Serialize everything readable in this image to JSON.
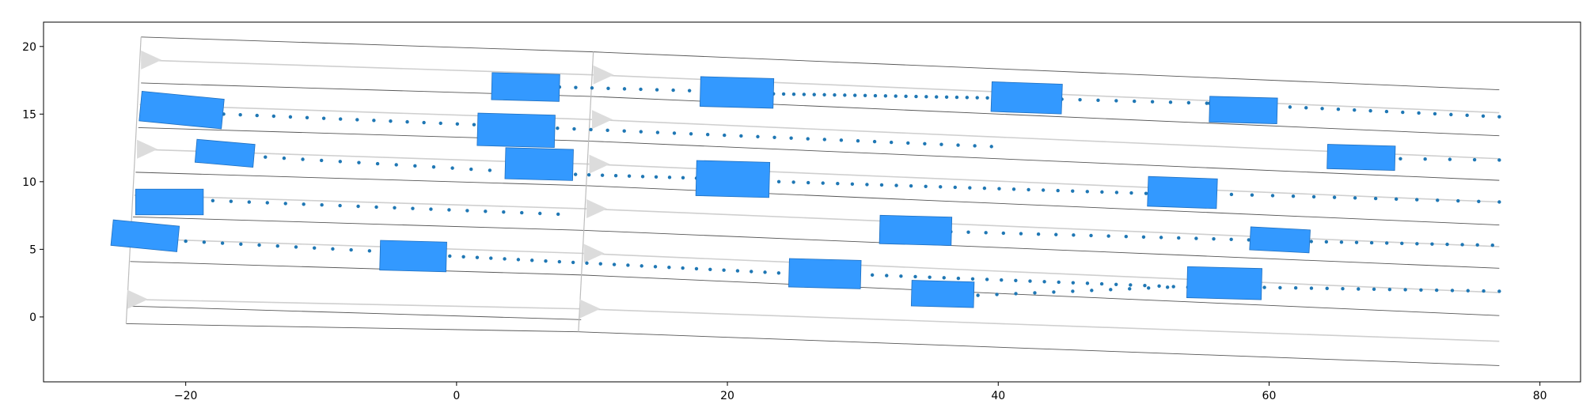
{
  "chart_data": {
    "type": "scatter",
    "title": "",
    "xlabel": "",
    "ylabel": "",
    "xlim": [
      -30.5,
      83
    ],
    "ylim": [
      -4.8,
      21.8
    ],
    "xticks": [
      -20,
      0,
      20,
      40,
      60,
      80
    ],
    "yticks": [
      0,
      5,
      10,
      15,
      20
    ],
    "xtick_labels": [
      "−20",
      "0",
      "20",
      "40",
      "60",
      "80"
    ],
    "ytick_labels": [
      "0",
      "5",
      "10",
      "15",
      "20"
    ],
    "grid": false,
    "legend": "none",
    "colors": {
      "vehicle": "#3399ff",
      "vehicle_edge": "#1f6fbf",
      "trajectory": "#1f77b4",
      "road_edge": "#555555",
      "lane_center": "#cfcfcf",
      "lane_arrow": "#dcdcdc"
    },
    "road": {
      "segments": [
        {
          "boundaries": [
            [
              [
                -23.3,
                20.7
              ],
              [
                10.1,
                19.6
              ]
            ],
            [
              [
                -23.3,
                17.3
              ],
              [
                10.1,
                16.3
              ]
            ],
            [
              [
                -23.5,
                14.0
              ],
              [
                9.9,
                13.0
              ]
            ],
            [
              [
                -23.7,
                10.7
              ],
              [
                9.7,
                9.7
              ]
            ],
            [
              [
                -23.9,
                7.4
              ],
              [
                9.5,
                6.4
              ]
            ],
            [
              [
                -24.1,
                4.1
              ],
              [
                9.3,
                3.1
              ]
            ],
            [
              [
                -24.2,
                0.8
              ],
              [
                9.2,
                -0.2
              ]
            ],
            [
              [
                -24.4,
                -0.5
              ],
              [
                9.0,
                -1.1
              ]
            ]
          ],
          "lane_centers": [
            [
              [
                -23.3,
                19.0
              ],
              [
                10.1,
                17.9
              ]
            ],
            [
              [
                -23.4,
                15.7
              ],
              [
                10.0,
                14.6
              ]
            ],
            [
              [
                -23.6,
                12.4
              ],
              [
                9.8,
                11.3
              ]
            ],
            [
              [
                -23.8,
                9.0
              ],
              [
                9.6,
                8.0
              ]
            ],
            [
              [
                -24.0,
                5.8
              ],
              [
                9.4,
                4.7
              ]
            ],
            [
              [
                -24.3,
                1.3
              ],
              [
                9.1,
                0.6
              ]
            ]
          ],
          "start_line": [
            [
              -23.3,
              20.7
            ],
            [
              -24.4,
              -0.5
            ]
          ],
          "arrows": [
            [
              -23.3,
              19.0
            ],
            [
              -23.6,
              12.4
            ],
            [
              -24.0,
              5.8
            ],
            [
              -24.3,
              1.3
            ]
          ]
        },
        {
          "boundaries": [
            [
              [
                10.1,
                19.6
              ],
              [
                77.0,
                16.8
              ]
            ],
            [
              [
                10.1,
                16.3
              ],
              [
                77.0,
                13.4
              ]
            ],
            [
              [
                9.9,
                13.0
              ],
              [
                77.0,
                10.1
              ]
            ],
            [
              [
                9.7,
                9.7
              ],
              [
                77.0,
                6.8
              ]
            ],
            [
              [
                9.5,
                6.4
              ],
              [
                77.0,
                3.6
              ]
            ],
            [
              [
                9.3,
                3.1
              ],
              [
                77.0,
                0.1
              ]
            ],
            [
              [
                9.0,
                -1.1
              ],
              [
                77.0,
                -3.6
              ]
            ]
          ],
          "lane_centers": [
            [
              [
                10.1,
                17.9
              ],
              [
                77.0,
                15.1
              ]
            ],
            [
              [
                10.0,
                14.6
              ],
              [
                77.0,
                11.7
              ]
            ],
            [
              [
                9.8,
                11.3
              ],
              [
                77.0,
                8.5
              ]
            ],
            [
              [
                9.6,
                8.0
              ],
              [
                77.0,
                5.2
              ]
            ],
            [
              [
                9.4,
                4.7
              ],
              [
                77.0,
                1.8
              ]
            ],
            [
              [
                9.1,
                0.6
              ],
              [
                77.0,
                -1.8
              ]
            ]
          ],
          "start_line": [
            [
              10.1,
              19.6
            ],
            [
              9.0,
              -1.1
            ]
          ],
          "arrows": [
            [
              10.1,
              17.9
            ],
            [
              10.0,
              14.6
            ],
            [
              9.8,
              11.3
            ],
            [
              9.6,
              8.0
            ],
            [
              9.4,
              4.7
            ],
            [
              9.1,
              0.6
            ]
          ]
        }
      ]
    },
    "vehicles": [
      {
        "x": 5.1,
        "y": 17.0,
        "length": 5.0,
        "width": 2.0,
        "heading": -1.5
      },
      {
        "x": 20.7,
        "y": 16.6,
        "length": 5.4,
        "width": 2.2,
        "heading": -1.5
      },
      {
        "x": 42.1,
        "y": 16.2,
        "length": 5.2,
        "width": 2.2,
        "heading": -2.0
      },
      {
        "x": 58.1,
        "y": 15.3,
        "length": 5.0,
        "width": 1.9,
        "heading": -1.5
      },
      {
        "x": -20.3,
        "y": 15.3,
        "length": 6.1,
        "width": 2.2,
        "heading": -5.5
      },
      {
        "x": 4.4,
        "y": 13.8,
        "length": 5.7,
        "width": 2.4,
        "heading": -1.5
      },
      {
        "x": 66.8,
        "y": 11.8,
        "length": 5.0,
        "width": 1.8,
        "heading": -1.5
      },
      {
        "x": -17.1,
        "y": 12.1,
        "length": 4.3,
        "width": 1.7,
        "heading": -5.0
      },
      {
        "x": 6.1,
        "y": 11.3,
        "length": 5.0,
        "width": 2.3,
        "heading": -1.5
      },
      {
        "x": 20.4,
        "y": 10.2,
        "length": 5.4,
        "width": 2.6,
        "heading": -1.5
      },
      {
        "x": 53.6,
        "y": 9.2,
        "length": 5.1,
        "width": 2.2,
        "heading": -2.0
      },
      {
        "x": -21.2,
        "y": 8.5,
        "length": 5.0,
        "width": 1.9,
        "heading": 0.0
      },
      {
        "x": 33.9,
        "y": 6.4,
        "length": 5.3,
        "width": 2.1,
        "heading": -1.5
      },
      {
        "x": 60.8,
        "y": 5.7,
        "length": 4.4,
        "width": 1.7,
        "heading": -3.0
      },
      {
        "x": -23.0,
        "y": 6.0,
        "length": 4.9,
        "width": 1.9,
        "heading": -5.5
      },
      {
        "x": -3.2,
        "y": 4.5,
        "length": 4.9,
        "width": 2.2,
        "heading": -1.5
      },
      {
        "x": 27.2,
        "y": 3.2,
        "length": 5.3,
        "width": 2.1,
        "heading": -1.5
      },
      {
        "x": 56.7,
        "y": 2.5,
        "length": 5.5,
        "width": 2.3,
        "heading": -1.5
      },
      {
        "x": 35.9,
        "y": 1.7,
        "length": 4.6,
        "width": 1.9,
        "heading": -1.5
      }
    ],
    "trajectories": [
      {
        "x0": 7.6,
        "x1": 22.0,
        "y0": 17.0,
        "y1": 16.6,
        "n": 13
      },
      {
        "x0": 23.4,
        "x1": 39.2,
        "y0": 16.5,
        "y1": 16.2,
        "n": 22
      },
      {
        "x0": 44.7,
        "x1": 55.4,
        "y0": 16.1,
        "y1": 15.8,
        "n": 9
      },
      {
        "x0": 55.6,
        "x1": 77.0,
        "y0": 15.8,
        "y1": 14.8,
        "n": 19
      },
      {
        "x0": -17.2,
        "x1": 39.5,
        "y0": 15.0,
        "y1": 12.6,
        "n": 47
      },
      {
        "x0": -15.5,
        "x1": 6.6,
        "y0": 11.9,
        "y1": 10.6,
        "n": 17
      },
      {
        "x0": 6.8,
        "x1": 19.7,
        "y0": 10.6,
        "y1": 10.2,
        "n": 14
      },
      {
        "x0": 23.8,
        "x1": 52.0,
        "y0": 10.0,
        "y1": 9.1,
        "n": 27
      },
      {
        "x0": 55.7,
        "x1": 77.0,
        "y0": 9.1,
        "y1": 8.5,
        "n": 15
      },
      {
        "x0": 69.7,
        "x1": 77.0,
        "y0": 11.7,
        "y1": 11.6,
        "n": 5
      },
      {
        "x0": -18.0,
        "x1": 7.5,
        "y0": 8.6,
        "y1": 7.6,
        "n": 20
      },
      {
        "x0": 36.5,
        "x1": 58.5,
        "y0": 6.3,
        "y1": 5.7,
        "n": 18
      },
      {
        "x0": 62.0,
        "x1": 76.5,
        "y0": 5.6,
        "y1": 5.3,
        "n": 14
      },
      {
        "x0": -20.0,
        "x1": -1.0,
        "y0": 5.6,
        "y1": 4.6,
        "n": 15
      },
      {
        "x0": -0.5,
        "x1": 24.8,
        "y0": 4.5,
        "y1": 3.2,
        "n": 26
      },
      {
        "x0": 30.7,
        "x1": 54.0,
        "y0": 3.1,
        "y1": 2.2,
        "n": 23
      },
      {
        "x0": 38.5,
        "x1": 52.5,
        "y0": 1.6,
        "y1": 2.2,
        "n": 11
      },
      {
        "x0": 58.5,
        "x1": 77.0,
        "y0": 2.2,
        "y1": 1.9,
        "n": 17
      }
    ]
  }
}
